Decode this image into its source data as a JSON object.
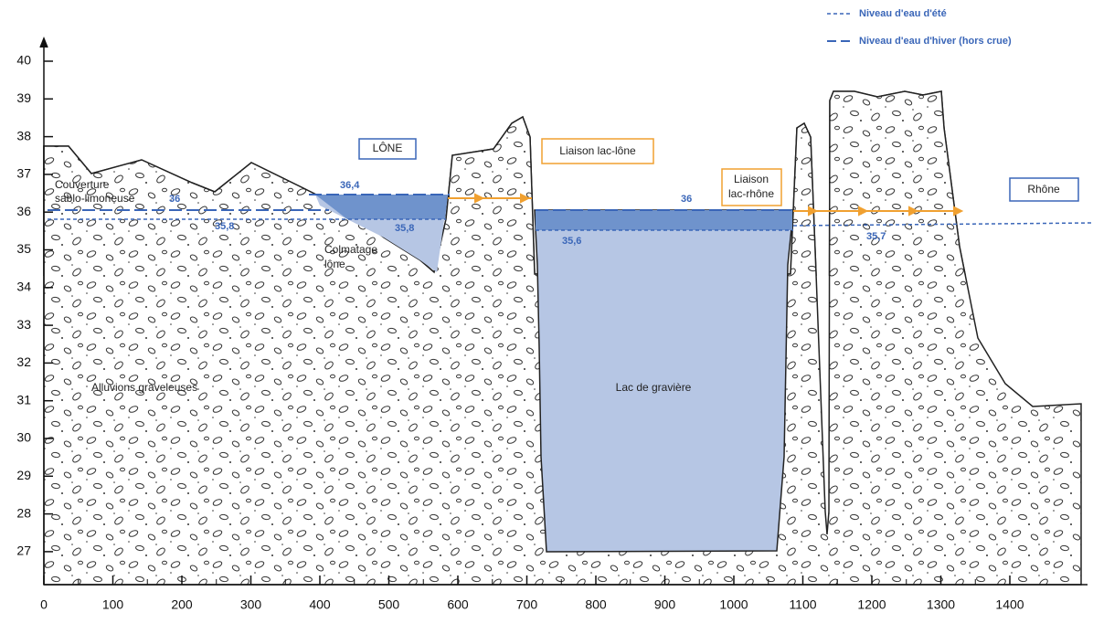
{
  "axes": {
    "x_ticks": [
      0,
      100,
      200,
      300,
      400,
      500,
      600,
      700,
      800,
      900,
      1000,
      1100,
      1200,
      1300,
      1400
    ],
    "y_ticks": [
      27,
      28,
      29,
      30,
      31,
      32,
      33,
      34,
      35,
      36,
      37,
      38,
      39,
      40
    ]
  },
  "legend": {
    "summer": "Niveau d'eau d'été",
    "winter": "Niveau d'eau d'hiver (hors crue)"
  },
  "boxes": {
    "lone": "LÔNE",
    "liaison_lac_lone": "Liaison lac-lône",
    "liaison_lac_rhone_1": "Liaison",
    "liaison_lac_rhone_2": "lac-rhône",
    "rhone": "Rhône"
  },
  "labels": {
    "couverture_1": "Couverture",
    "couverture_2": "sablo-limoneuse",
    "colmatage_1": "Colmatage",
    "colmatage_2": "lône",
    "lac": "Lac de gravière",
    "alluvions": "Alluvions graveleuses"
  },
  "levels": {
    "left_winter": "36",
    "left_summer": "35,8",
    "lone_winter": "36,4",
    "lone_summer": "35,8",
    "lake_winter": "36",
    "lake_summer": "35,6",
    "rhone_summer": "35,7"
  }
}
